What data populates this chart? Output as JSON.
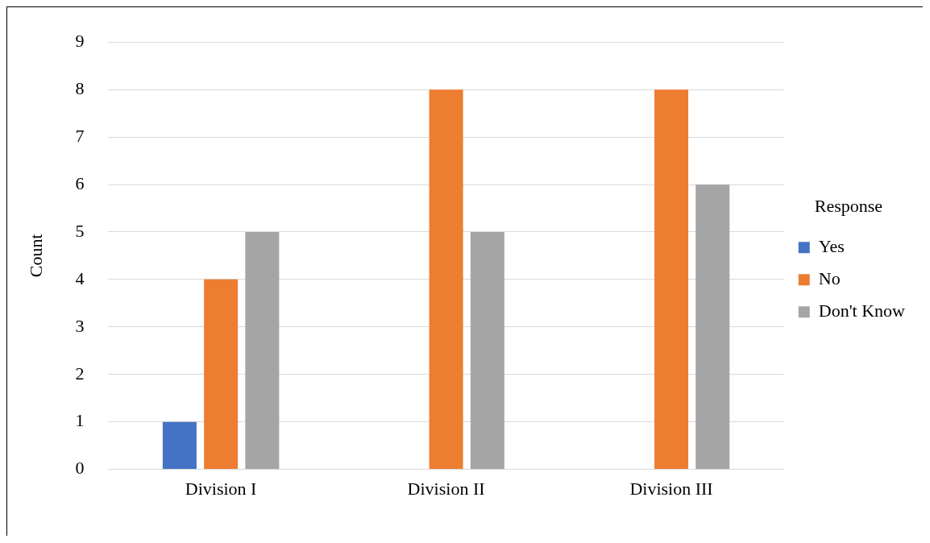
{
  "chart_data": {
    "type": "bar",
    "ylabel": "Count",
    "legend_title": "Response",
    "categories": [
      "Division I",
      "Division II",
      "Division III"
    ],
    "series": [
      {
        "name": "Yes",
        "color": "#4472c4",
        "values": [
          1,
          0,
          0
        ]
      },
      {
        "name": "No",
        "color": "#ed7d31",
        "values": [
          4,
          8,
          8
        ]
      },
      {
        "name": "Don't Know",
        "color": "#a5a5a5",
        "values": [
          5,
          5,
          6
        ]
      }
    ],
    "ylim": [
      0,
      9
    ],
    "yticks": [
      0,
      1,
      2,
      3,
      4,
      5,
      6,
      7,
      8,
      9
    ],
    "grid": "y",
    "legend": "right"
  }
}
